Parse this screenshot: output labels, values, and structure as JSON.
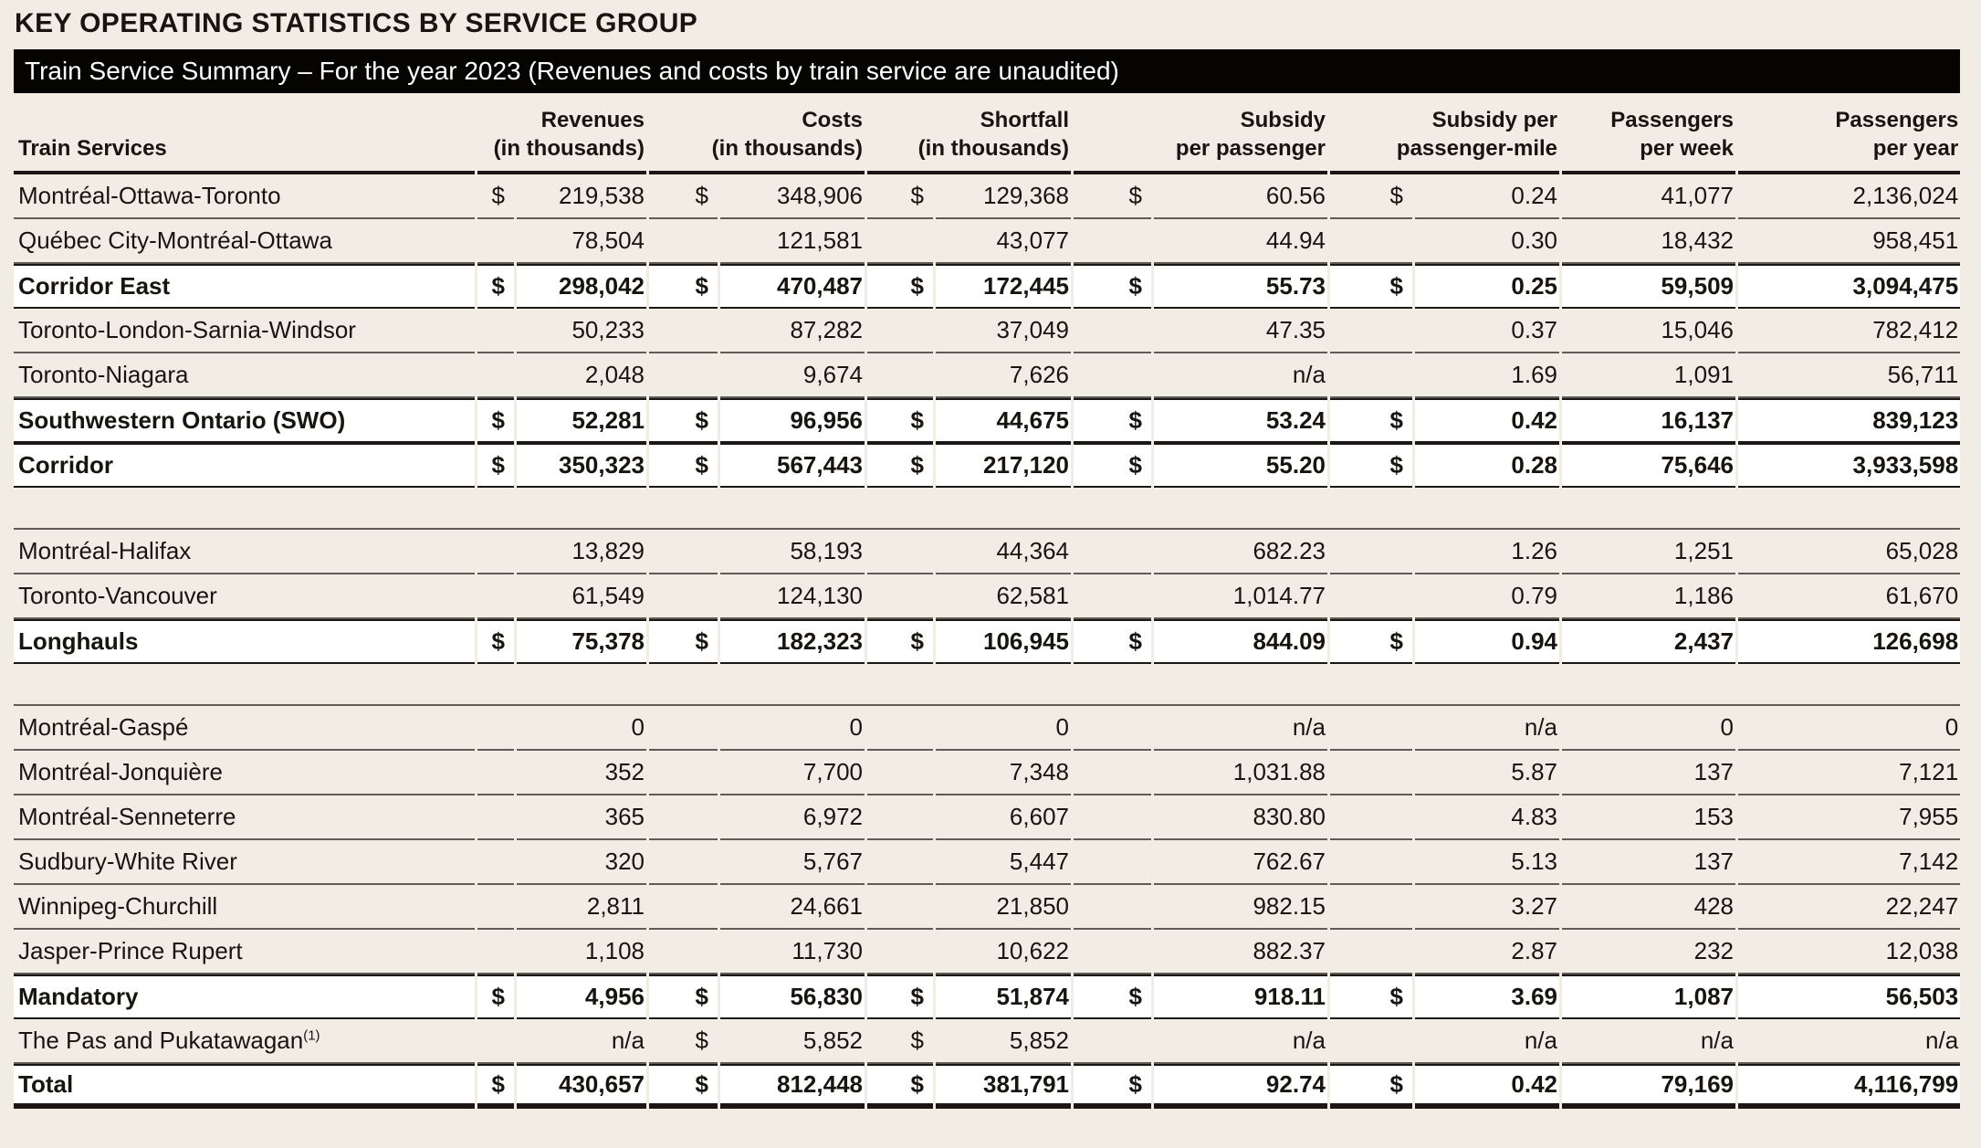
{
  "page": {
    "title": "KEY OPERATING STATISTICS BY SERVICE GROUP",
    "banner": "Train Service Summary – For the year 2023 (Revenues and costs by train service are unaudited)"
  },
  "colors": {
    "page_background": "#f2ede4",
    "banner_background": "#050403",
    "banner_text": "#ffffff",
    "subtotal_row_background": "#ffffff",
    "border_dark": "#1a1714",
    "border_light": "#5f5b55",
    "text": "#18140f"
  },
  "table": {
    "columns": {
      "train_services": "Train Services",
      "revenues": {
        "line1": "Revenues",
        "line2": "(in thousands)"
      },
      "costs": {
        "line1": "Costs",
        "line2": "(in thousands)"
      },
      "shortfall": {
        "line1": "Shortfall",
        "line2": "(in thousands)"
      },
      "subsidy_per_passenger": {
        "line1": "Subsidy",
        "line2": "per passenger"
      },
      "subsidy_per_passenger_mile": {
        "line1": "Subsidy per",
        "line2": "passenger-mile"
      },
      "passengers_per_week": {
        "line1": "Passengers",
        "line2": "per week"
      },
      "passengers_per_year": {
        "line1": "Passengers",
        "line2": "per year"
      }
    },
    "rows": [
      {
        "type": "data",
        "name": "Montréal-Ottawa-Toronto",
        "bold": false,
        "revenues": {
          "cur": "$",
          "val": "219,538"
        },
        "costs": {
          "cur": "$",
          "val": "348,906"
        },
        "shortfall": {
          "cur": "$",
          "val": "129,368"
        },
        "subsidy_per_passenger": {
          "cur": "$",
          "val": "60.56"
        },
        "subsidy_per_passenger_mile": {
          "cur": "$",
          "val": "0.24"
        },
        "passengers_per_week": "41,077",
        "passengers_per_year": "2,136,024"
      },
      {
        "type": "data",
        "name": "Québec City-Montréal-Ottawa",
        "bold": false,
        "revenues": {
          "cur": "",
          "val": "78,504"
        },
        "costs": {
          "cur": "",
          "val": "121,581"
        },
        "shortfall": {
          "cur": "",
          "val": "43,077"
        },
        "subsidy_per_passenger": {
          "cur": "",
          "val": "44.94"
        },
        "subsidy_per_passenger_mile": {
          "cur": "",
          "val": "0.30"
        },
        "passengers_per_week": "18,432",
        "passengers_per_year": "958,451"
      },
      {
        "type": "data",
        "name": "Corridor East",
        "bold": true,
        "revenues": {
          "cur": "$",
          "val": "298,042"
        },
        "costs": {
          "cur": "$",
          "val": "470,487"
        },
        "shortfall": {
          "cur": "$",
          "val": "172,445"
        },
        "subsidy_per_passenger": {
          "cur": "$",
          "val": "55.73"
        },
        "subsidy_per_passenger_mile": {
          "cur": "$",
          "val": "0.25"
        },
        "passengers_per_week": "59,509",
        "passengers_per_year": "3,094,475"
      },
      {
        "type": "data",
        "name": "Toronto-London-Sarnia-Windsor",
        "bold": false,
        "revenues": {
          "cur": "",
          "val": "50,233"
        },
        "costs": {
          "cur": "",
          "val": "87,282"
        },
        "shortfall": {
          "cur": "",
          "val": "37,049"
        },
        "subsidy_per_passenger": {
          "cur": "",
          "val": "47.35"
        },
        "subsidy_per_passenger_mile": {
          "cur": "",
          "val": "0.37"
        },
        "passengers_per_week": "15,046",
        "passengers_per_year": "782,412"
      },
      {
        "type": "data",
        "name": "Toronto-Niagara",
        "bold": false,
        "revenues": {
          "cur": "",
          "val": "2,048"
        },
        "costs": {
          "cur": "",
          "val": "9,674"
        },
        "shortfall": {
          "cur": "",
          "val": "7,626"
        },
        "subsidy_per_passenger": {
          "cur": "",
          "val": "n/a"
        },
        "subsidy_per_passenger_mile": {
          "cur": "",
          "val": "1.69"
        },
        "passengers_per_week": "1,091",
        "passengers_per_year": "56,711"
      },
      {
        "type": "data",
        "name": "Southwestern Ontario (SWO)",
        "bold": true,
        "revenues": {
          "cur": "$",
          "val": "52,281"
        },
        "costs": {
          "cur": "$",
          "val": "96,956"
        },
        "shortfall": {
          "cur": "$",
          "val": "44,675"
        },
        "subsidy_per_passenger": {
          "cur": "$",
          "val": "53.24"
        },
        "subsidy_per_passenger_mile": {
          "cur": "$",
          "val": "0.42"
        },
        "passengers_per_week": "16,137",
        "passengers_per_year": "839,123"
      },
      {
        "type": "data",
        "name": "Corridor",
        "bold": true,
        "revenues": {
          "cur": "$",
          "val": "350,323"
        },
        "costs": {
          "cur": "$",
          "val": "567,443"
        },
        "shortfall": {
          "cur": "$",
          "val": "217,120"
        },
        "subsidy_per_passenger": {
          "cur": "$",
          "val": "55.20"
        },
        "subsidy_per_passenger_mile": {
          "cur": "$",
          "val": "0.28"
        },
        "passengers_per_week": "75,646",
        "passengers_per_year": "3,933,598"
      },
      {
        "type": "spacer"
      },
      {
        "type": "data",
        "name": "Montréal-Halifax",
        "bold": false,
        "revenues": {
          "cur": "",
          "val": "13,829"
        },
        "costs": {
          "cur": "",
          "val": "58,193"
        },
        "shortfall": {
          "cur": "",
          "val": "44,364"
        },
        "subsidy_per_passenger": {
          "cur": "",
          "val": "682.23"
        },
        "subsidy_per_passenger_mile": {
          "cur": "",
          "val": "1.26"
        },
        "passengers_per_week": "1,251",
        "passengers_per_year": "65,028"
      },
      {
        "type": "data",
        "name": "Toronto-Vancouver",
        "bold": false,
        "revenues": {
          "cur": "",
          "val": "61,549"
        },
        "costs": {
          "cur": "",
          "val": "124,130"
        },
        "shortfall": {
          "cur": "",
          "val": "62,581"
        },
        "subsidy_per_passenger": {
          "cur": "",
          "val": "1,014.77"
        },
        "subsidy_per_passenger_mile": {
          "cur": "",
          "val": "0.79"
        },
        "passengers_per_week": "1,186",
        "passengers_per_year": "61,670"
      },
      {
        "type": "data",
        "name": "Longhauls",
        "bold": true,
        "revenues": {
          "cur": "$",
          "val": "75,378"
        },
        "costs": {
          "cur": "$",
          "val": "182,323"
        },
        "shortfall": {
          "cur": "$",
          "val": "106,945"
        },
        "subsidy_per_passenger": {
          "cur": "$",
          "val": "844.09"
        },
        "subsidy_per_passenger_mile": {
          "cur": "$",
          "val": "0.94"
        },
        "passengers_per_week": "2,437",
        "passengers_per_year": "126,698"
      },
      {
        "type": "spacer"
      },
      {
        "type": "data",
        "name": "Montréal-Gaspé",
        "bold": false,
        "revenues": {
          "cur": "",
          "val": "0"
        },
        "costs": {
          "cur": "",
          "val": "0"
        },
        "shortfall": {
          "cur": "",
          "val": "0"
        },
        "subsidy_per_passenger": {
          "cur": "",
          "val": "n/a"
        },
        "subsidy_per_passenger_mile": {
          "cur": "",
          "val": "n/a"
        },
        "passengers_per_week": "0",
        "passengers_per_year": "0"
      },
      {
        "type": "data",
        "name": "Montréal-Jonquière",
        "bold": false,
        "revenues": {
          "cur": "",
          "val": "352"
        },
        "costs": {
          "cur": "",
          "val": "7,700"
        },
        "shortfall": {
          "cur": "",
          "val": "7,348"
        },
        "subsidy_per_passenger": {
          "cur": "",
          "val": "1,031.88"
        },
        "subsidy_per_passenger_mile": {
          "cur": "",
          "val": "5.87"
        },
        "passengers_per_week": "137",
        "passengers_per_year": "7,121"
      },
      {
        "type": "data",
        "name": "Montréal-Senneterre",
        "bold": false,
        "revenues": {
          "cur": "",
          "val": "365"
        },
        "costs": {
          "cur": "",
          "val": "6,972"
        },
        "shortfall": {
          "cur": "",
          "val": "6,607"
        },
        "subsidy_per_passenger": {
          "cur": "",
          "val": "830.80"
        },
        "subsidy_per_passenger_mile": {
          "cur": "",
          "val": "4.83"
        },
        "passengers_per_week": "153",
        "passengers_per_year": "7,955"
      },
      {
        "type": "data",
        "name": "Sudbury-White River",
        "bold": false,
        "revenues": {
          "cur": "",
          "val": "320"
        },
        "costs": {
          "cur": "",
          "val": "5,767"
        },
        "shortfall": {
          "cur": "",
          "val": "5,447"
        },
        "subsidy_per_passenger": {
          "cur": "",
          "val": "762.67"
        },
        "subsidy_per_passenger_mile": {
          "cur": "",
          "val": "5.13"
        },
        "passengers_per_week": "137",
        "passengers_per_year": "7,142"
      },
      {
        "type": "data",
        "name": "Winnipeg-Churchill",
        "bold": false,
        "revenues": {
          "cur": "",
          "val": "2,811"
        },
        "costs": {
          "cur": "",
          "val": "24,661"
        },
        "shortfall": {
          "cur": "",
          "val": "21,850"
        },
        "subsidy_per_passenger": {
          "cur": "",
          "val": "982.15"
        },
        "subsidy_per_passenger_mile": {
          "cur": "",
          "val": "3.27"
        },
        "passengers_per_week": "428",
        "passengers_per_year": "22,247"
      },
      {
        "type": "data",
        "name": "Jasper-Prince Rupert",
        "bold": false,
        "revenues": {
          "cur": "",
          "val": "1,108"
        },
        "costs": {
          "cur": "",
          "val": "11,730"
        },
        "shortfall": {
          "cur": "",
          "val": "10,622"
        },
        "subsidy_per_passenger": {
          "cur": "",
          "val": "882.37"
        },
        "subsidy_per_passenger_mile": {
          "cur": "",
          "val": "2.87"
        },
        "passengers_per_week": "232",
        "passengers_per_year": "12,038"
      },
      {
        "type": "data",
        "name": "Mandatory",
        "bold": true,
        "revenues": {
          "cur": "$",
          "val": "4,956"
        },
        "costs": {
          "cur": "$",
          "val": "56,830"
        },
        "shortfall": {
          "cur": "$",
          "val": "51,874"
        },
        "subsidy_per_passenger": {
          "cur": "$",
          "val": "918.11"
        },
        "subsidy_per_passenger_mile": {
          "cur": "$",
          "val": "3.69"
        },
        "passengers_per_week": "1,087",
        "passengers_per_year": "56,503"
      },
      {
        "type": "data",
        "name": "The Pas and Pukatawagan",
        "footnote": "(1)",
        "bold": false,
        "revenues": {
          "cur": "",
          "val": "n/a"
        },
        "costs": {
          "cur": "$",
          "val": "5,852"
        },
        "shortfall": {
          "cur": "$",
          "val": "5,852"
        },
        "subsidy_per_passenger": {
          "cur": "",
          "val": "n/a"
        },
        "subsidy_per_passenger_mile": {
          "cur": "",
          "val": "n/a"
        },
        "passengers_per_week": "n/a",
        "passengers_per_year": "n/a"
      },
      {
        "type": "data",
        "name": "Total",
        "bold": true,
        "total": true,
        "revenues": {
          "cur": "$",
          "val": "430,657"
        },
        "costs": {
          "cur": "$",
          "val": "812,448"
        },
        "shortfall": {
          "cur": "$",
          "val": "381,791"
        },
        "subsidy_per_passenger": {
          "cur": "$",
          "val": "92.74"
        },
        "subsidy_per_passenger_mile": {
          "cur": "$",
          "val": "0.42"
        },
        "passengers_per_week": "79,169",
        "passengers_per_year": "4,116,799"
      }
    ]
  }
}
